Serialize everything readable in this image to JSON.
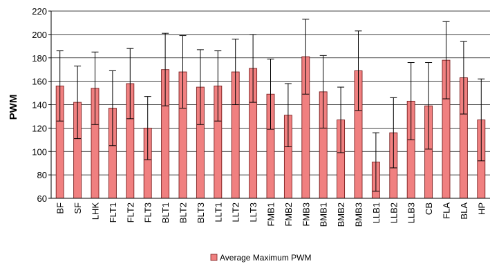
{
  "chart_data": {
    "type": "bar",
    "title": "",
    "xlabel": "",
    "ylabel": "PWM",
    "ylim": [
      60,
      220
    ],
    "yticks": [
      60,
      80,
      100,
      120,
      140,
      160,
      180,
      200,
      220
    ],
    "grid": "horizontal",
    "legend": "bottom",
    "categories": [
      "BF",
      "SF",
      "LHK",
      "FLT1",
      "FLT2",
      "FLT3",
      "BLT1",
      "BLT2",
      "BLT3",
      "LLT1",
      "LLT2",
      "LLT3",
      "FMB1",
      "FMB2",
      "FMB3",
      "BMB1",
      "BMB2",
      "BMB3",
      "LLB1",
      "LLB2",
      "LLB3",
      "CB",
      "FLA",
      "BLA",
      "HP"
    ],
    "series": [
      {
        "name": "Average Maximum PWM",
        "color": "#f08080",
        "values": [
          156,
          142,
          154,
          137,
          158,
          120,
          170,
          168,
          155,
          156,
          168,
          171,
          149,
          131,
          181,
          151,
          127,
          169,
          91,
          116,
          143,
          139,
          178,
          163,
          127
        ],
        "error": [
          30,
          31,
          31,
          32,
          30,
          27,
          31,
          31,
          32,
          30,
          28,
          29,
          30,
          27,
          32,
          31,
          28,
          34,
          25,
          30,
          33,
          37,
          33,
          31,
          35
        ]
      }
    ]
  }
}
